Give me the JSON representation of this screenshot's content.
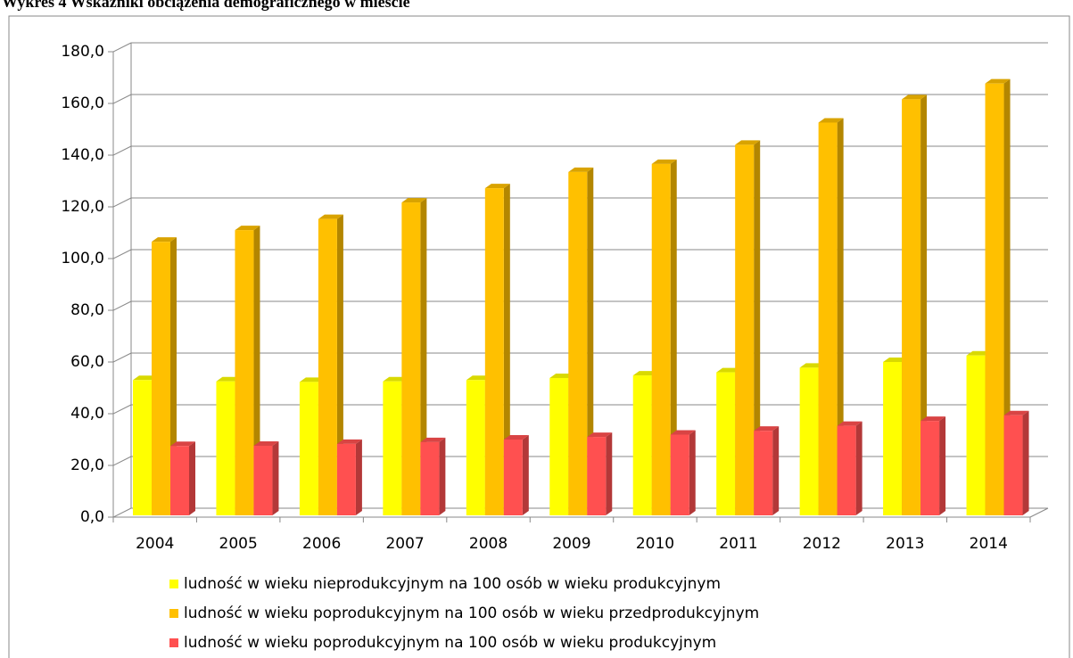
{
  "chart_data": {
    "type": "bar3d",
    "title": "Wykres 4 Wskaźniki obciążenia demograficznego w mieście",
    "categories": [
      "2004",
      "2005",
      "2006",
      "2007",
      "2008",
      "2009",
      "2010",
      "2011",
      "2012",
      "2013",
      "2014"
    ],
    "series": [
      {
        "name": "ludność w wieku nieprodukcyjnym na 100 osób w wieku produkcyjnym",
        "color": "#ffff00",
        "values": [
          53.0,
          52.5,
          52.3,
          52.5,
          53.0,
          53.8,
          54.8,
          56.0,
          57.8,
          60.0,
          62.5
        ]
      },
      {
        "name": "ludność w wieku poprodukcyjnym na 100 osób w wieku przedprodukcyjnym",
        "color": "#ffc000",
        "values": [
          106.5,
          111.0,
          115.3,
          121.7,
          127.2,
          133.5,
          136.6,
          144.0,
          152.6,
          161.6,
          167.7
        ]
      },
      {
        "name": "ludność w wieku poprodukcyjnym na 100 osób w wieku produkcyjnym",
        "color": "#ff5050",
        "values": [
          27.5,
          27.6,
          28.3,
          29.0,
          30.0,
          31.0,
          31.9,
          33.4,
          35.3,
          37.2,
          39.4
        ]
      }
    ],
    "ylim": [
      0,
      180
    ],
    "yticks": [
      {
        "value": 0,
        "label": "0,0"
      },
      {
        "value": 20,
        "label": "20,0"
      },
      {
        "value": 40,
        "label": "40,0"
      },
      {
        "value": 60,
        "label": "60,0"
      },
      {
        "value": 80,
        "label": "80,0"
      },
      {
        "value": 100,
        "label": "100,0"
      },
      {
        "value": 120,
        "label": "120,0"
      },
      {
        "value": 140,
        "label": "140,0"
      },
      {
        "value": 160,
        "label": "160,0"
      },
      {
        "value": 180,
        "label": "180,0"
      }
    ],
    "grid": true
  }
}
